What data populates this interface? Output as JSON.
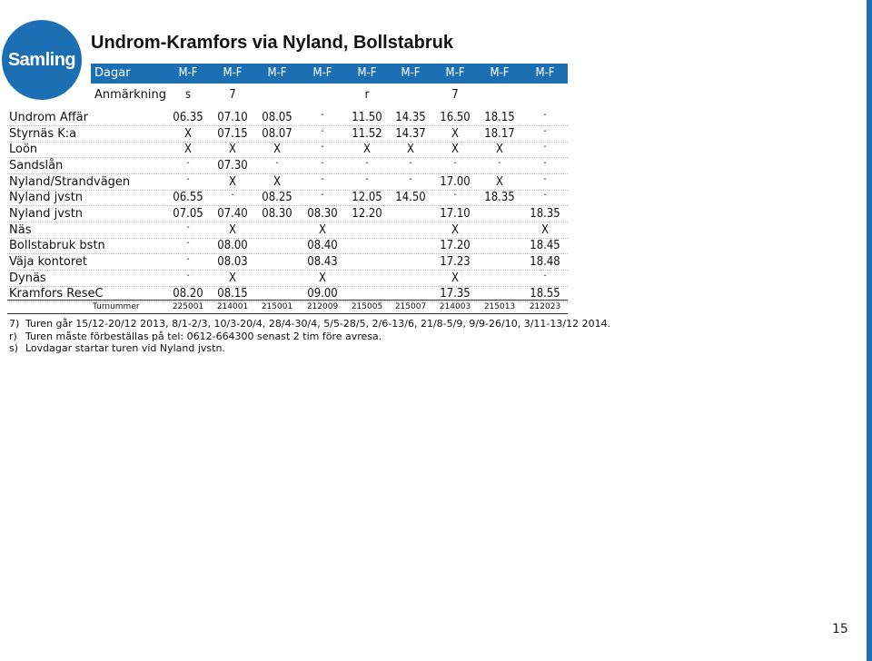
{
  "badge": "Samling",
  "title": "Undrom-Kramfors via Nyland, Bollstabruk",
  "page_number": "15",
  "days_label": "Dagar",
  "days": [
    "M-F",
    "M-F",
    "M-F",
    "M-F",
    "M-F",
    "M-F",
    "M-F",
    "M-F",
    "M-F"
  ],
  "remark_label": "Anmärkning",
  "remarks": [
    "s",
    "7",
    "",
    "",
    "r",
    "",
    "7",
    "",
    ""
  ],
  "stops": [
    {
      "name": "Undrom Affär",
      "times": [
        "06.35",
        "07.10",
        "08.05",
        "-",
        "11.50",
        "14.35",
        "16.50",
        "18.15",
        "-"
      ]
    },
    {
      "name": "Styrnäs K:a",
      "times": [
        "X",
        "07.15",
        "08.07",
        "-",
        "11.52",
        "14.37",
        "X",
        "18.17",
        "-"
      ]
    },
    {
      "name": "Loön",
      "times": [
        "X",
        "X",
        "X",
        "-",
        "X",
        "X",
        "X",
        "X",
        "-"
      ]
    },
    {
      "name": "Sandslån",
      "times": [
        "-",
        "07.30",
        "-",
        "-",
        "-",
        "-",
        "-",
        "-",
        "-"
      ]
    },
    {
      "name": "Nyland/Strandvägen",
      "times": [
        "-",
        "X",
        "X",
        "-",
        "-",
        "-",
        "17.00",
        "X",
        "-"
      ]
    },
    {
      "name": "Nyland jvstn",
      "times": [
        "06.55",
        "-",
        "08.25",
        "-",
        "12.05",
        "14.50",
        "-",
        "18.35",
        "-"
      ]
    },
    {
      "name": "Nyland jvstn",
      "times": [
        "07.05",
        "07.40",
        "08.30",
        "08.30",
        "12.20",
        "",
        "17.10",
        "",
        "18.35"
      ]
    },
    {
      "name": "Näs",
      "times": [
        "-",
        "X",
        "",
        "X",
        "",
        "",
        "X",
        "",
        "X"
      ]
    },
    {
      "name": "Bollstabruk bstn",
      "times": [
        "-",
        "08.00",
        "",
        "08.40",
        "",
        "",
        "17.20",
        "",
        "18.45"
      ]
    },
    {
      "name": "Väja kontoret",
      "times": [
        "-",
        "08.03",
        "",
        "08.43",
        "",
        "",
        "17.23",
        "",
        "18.48"
      ]
    },
    {
      "name": "Dynäs",
      "times": [
        "-",
        "X",
        "",
        "X",
        "",
        "",
        "X",
        "",
        "-"
      ]
    },
    {
      "name": "Kramfors ReseC",
      "times": [
        "08.20",
        "08.15",
        "",
        "09.00",
        "",
        "",
        "17.35",
        "",
        "18.55"
      ]
    }
  ],
  "tur_label": "Turnummer",
  "tur_numbers": [
    "225001",
    "214001",
    "215001",
    "212009",
    "215005",
    "215007",
    "214003",
    "215013",
    "212023"
  ],
  "notes": [
    {
      "key": "7)",
      "text": "Turen går 15/12-20/12 2013, 8/1-2/3, 10/3-20/4, 28/4-30/4, 5/5-28/5, 2/6-13/6, 21/8-5/9, 9/9-26/10, 3/11-13/12 2014."
    },
    {
      "key": "r)",
      "text": "Turen måste förbeställas på tel: 0612-664300 senast 2 tim före avresa."
    },
    {
      "key": "s)",
      "text": "Lovdagar startar turen vid Nyland jvstn."
    }
  ]
}
